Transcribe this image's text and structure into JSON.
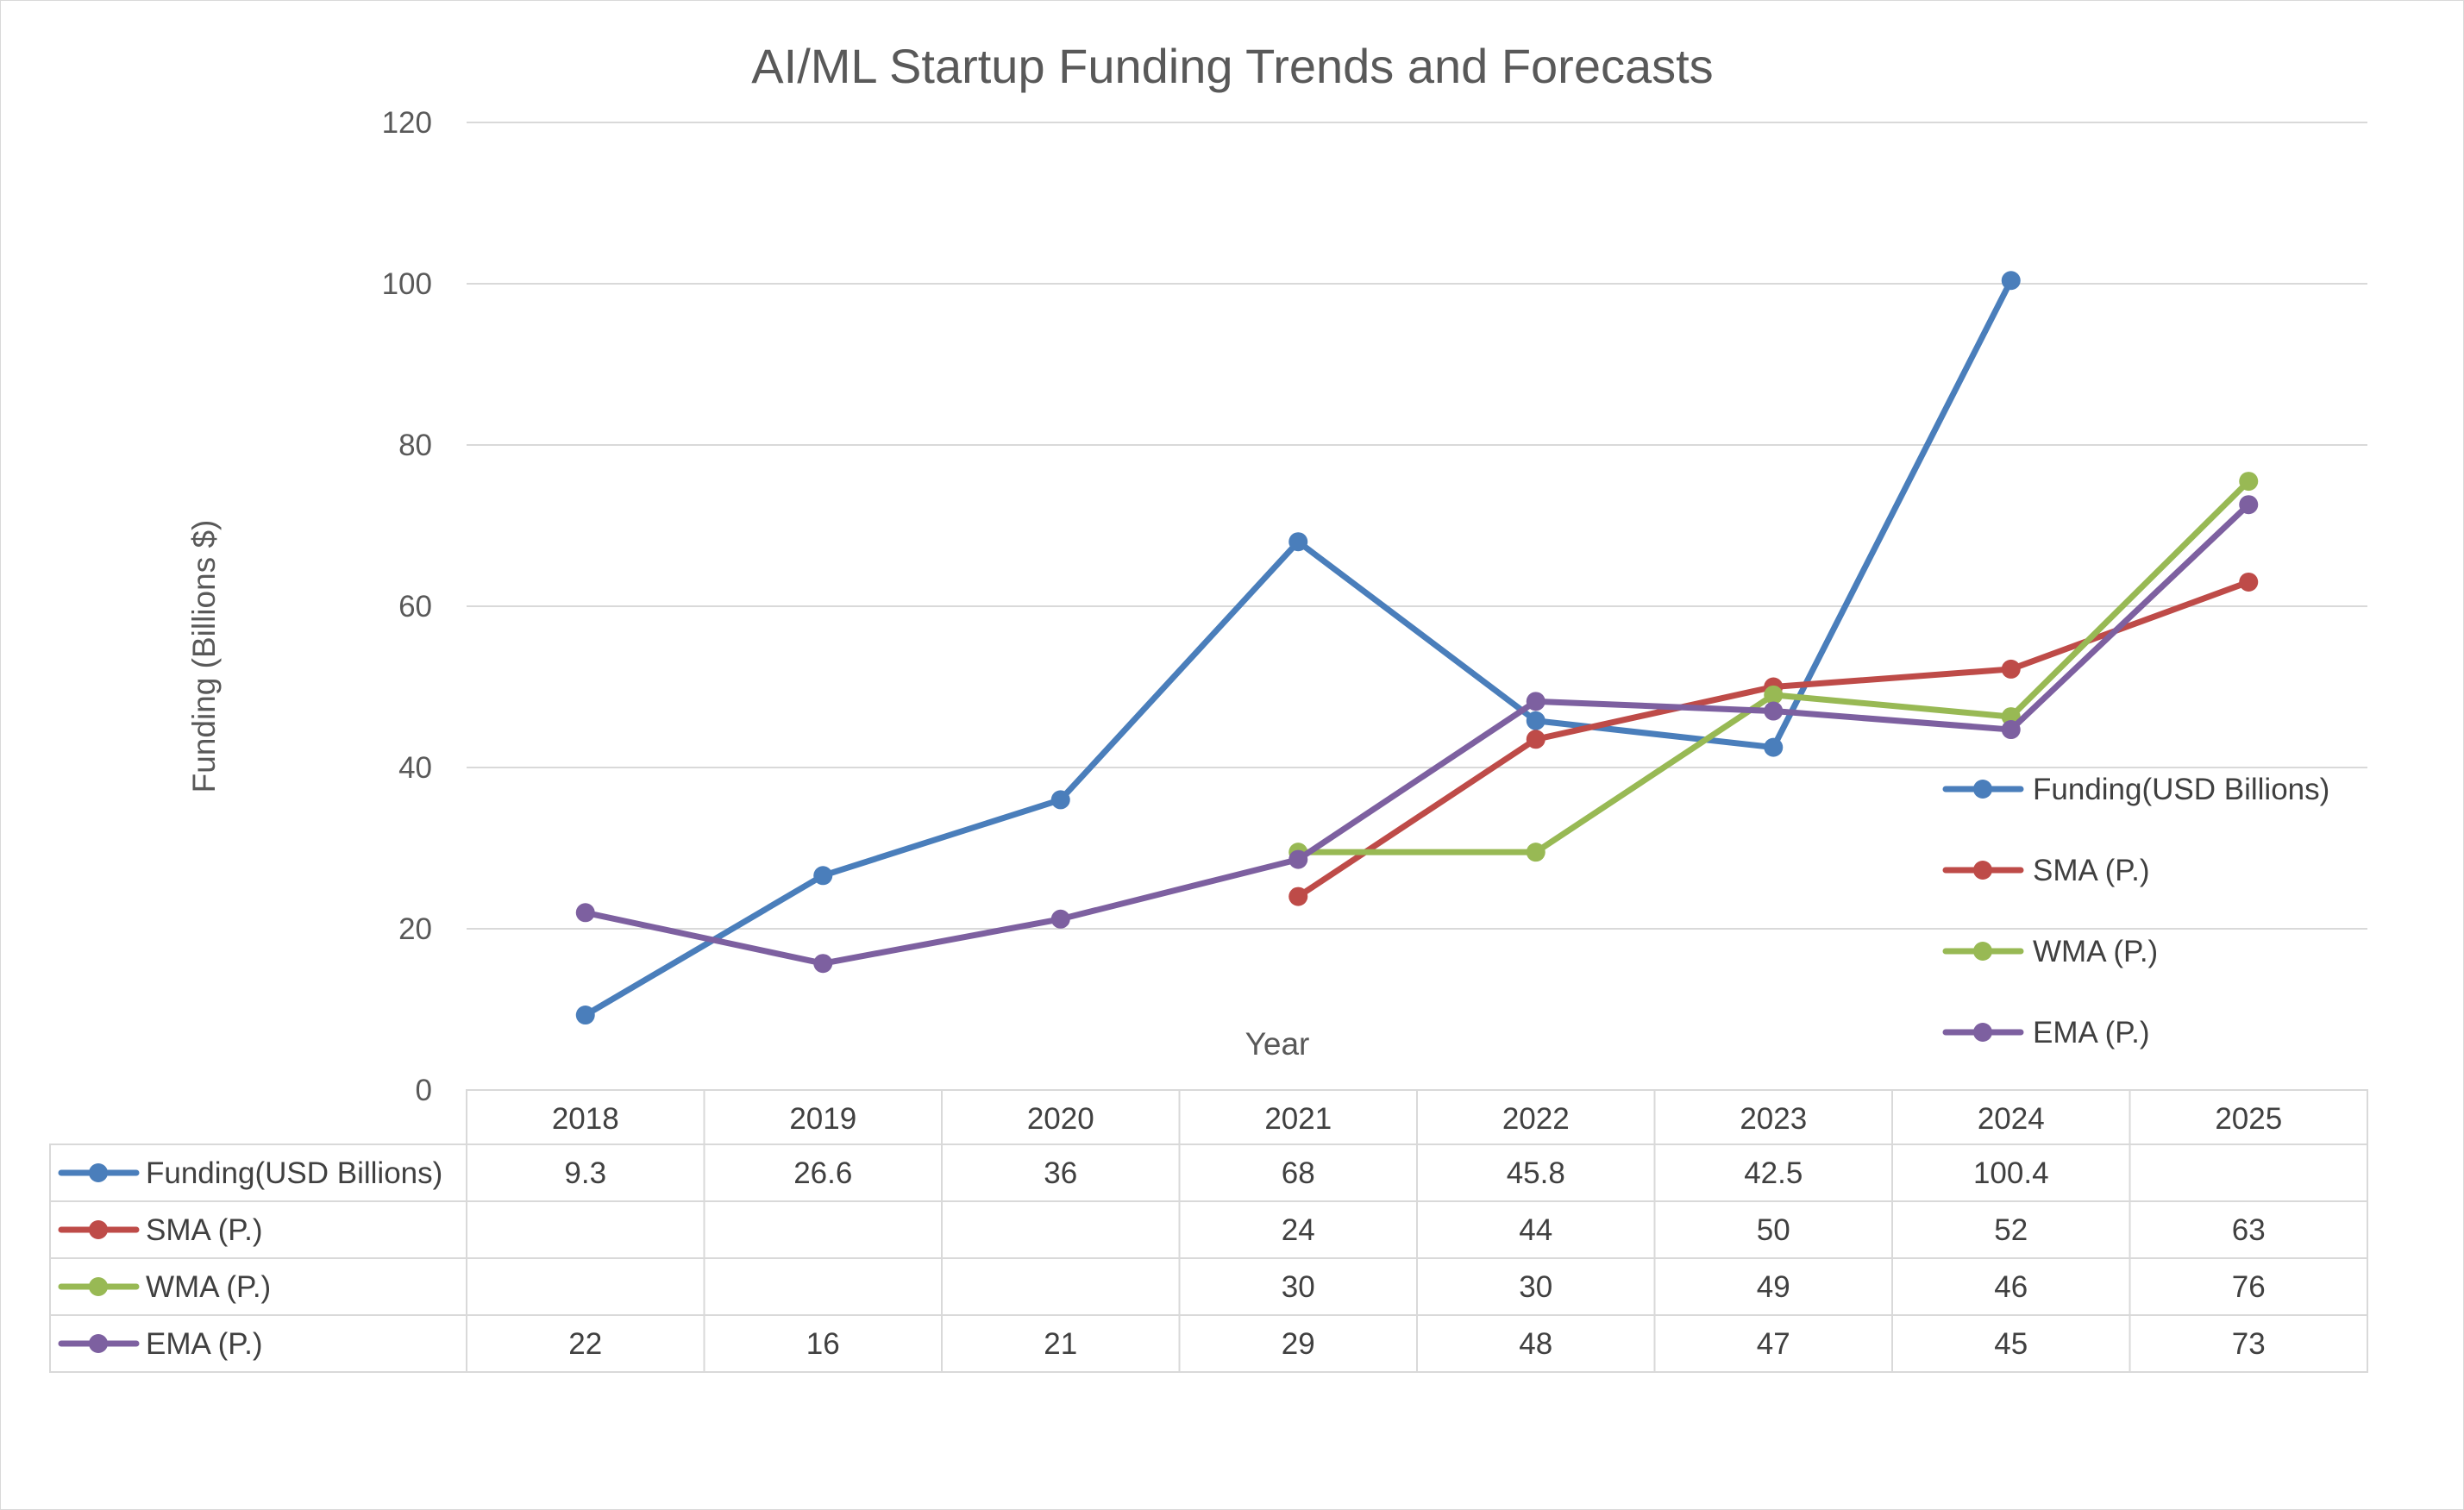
{
  "chart_data": {
    "type": "line",
    "title": "AI/ML Startup Funding Trends and Forecasts",
    "xlabel": "Year",
    "ylabel": "Funding (Billions $)",
    "ylim": [
      0,
      120
    ],
    "yticks": [
      0,
      20,
      40,
      60,
      80,
      100,
      120
    ],
    "grid": true,
    "legend_position": "right",
    "categories": [
      "2018",
      "2019",
      "2020",
      "2021",
      "2022",
      "2023",
      "2024",
      "2025"
    ],
    "series": [
      {
        "name": "Funding(USD Billions)",
        "color": "#4a7ebb",
        "values": [
          9.3,
          26.6,
          36,
          68,
          45.8,
          42.5,
          100.4,
          null
        ],
        "table_values": [
          "9.3",
          "26.6",
          "36",
          "68",
          "45.8",
          "42.5",
          "100.4",
          ""
        ]
      },
      {
        "name": "SMA (P.)",
        "color": "#be4b48",
        "values": [
          null,
          null,
          null,
          24,
          43.5,
          50,
          52.2,
          63
        ],
        "table_values": [
          "",
          "",
          "",
          "24",
          "44",
          "50",
          "52",
          "63"
        ]
      },
      {
        "name": "WMA (P.)",
        "color": "#98b954",
        "values": [
          null,
          null,
          null,
          29.5,
          29.5,
          49,
          46.3,
          75.5
        ],
        "table_values": [
          "",
          "",
          "",
          "30",
          "30",
          "49",
          "46",
          "76"
        ]
      },
      {
        "name": "EMA (P.)",
        "color": "#7d60a0",
        "values": [
          22,
          15.7,
          21.2,
          28.6,
          48.2,
          47,
          44.7,
          72.6
        ],
        "table_values": [
          "22",
          "16",
          "21",
          "29",
          "48",
          "47",
          "45",
          "73"
        ]
      }
    ]
  }
}
